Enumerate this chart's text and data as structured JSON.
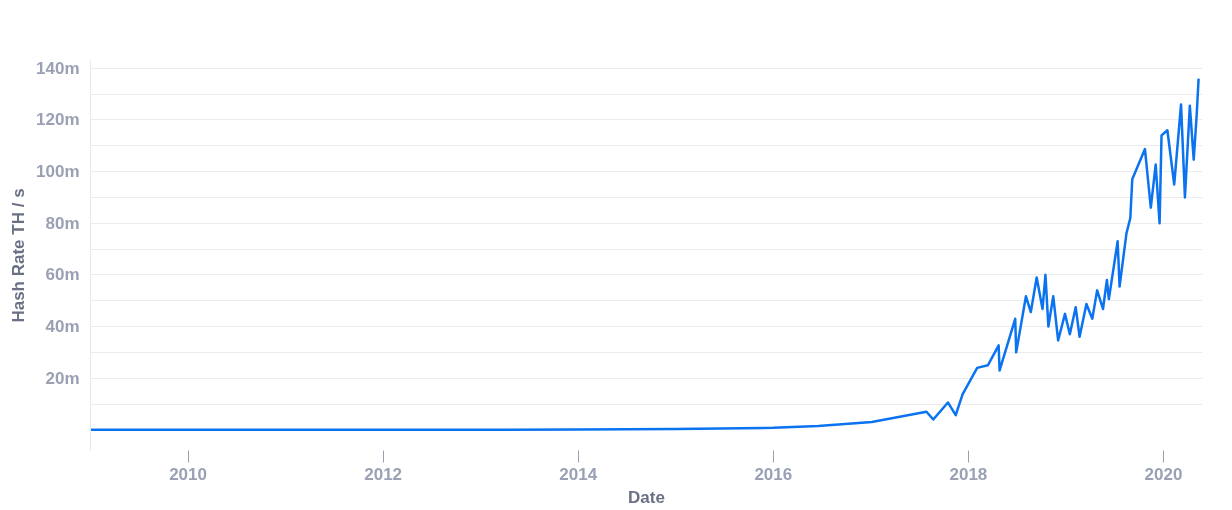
{
  "chart_data": {
    "type": "line",
    "xlabel": "Date",
    "ylabel": "Hash Rate TH / s",
    "xlim": [
      2009,
      2020.4
    ],
    "xticks": [
      2010,
      2012,
      2014,
      2016,
      2018,
      2020
    ],
    "ylim": [
      -8,
      143
    ],
    "yticks": [
      {
        "value": 10,
        "label": null
      },
      {
        "value": 20,
        "label": "20m"
      },
      {
        "value": 30,
        "label": null
      },
      {
        "value": 40,
        "label": "40m"
      },
      {
        "value": 50,
        "label": null
      },
      {
        "value": 60,
        "label": "60m"
      },
      {
        "value": 70,
        "label": null
      },
      {
        "value": 80,
        "label": "80m"
      },
      {
        "value": 90,
        "label": null
      },
      {
        "value": 100,
        "label": "100m"
      },
      {
        "value": 110,
        "label": null
      },
      {
        "value": 120,
        "label": "120m"
      },
      {
        "value": 130,
        "label": null
      },
      {
        "value": 140,
        "label": "140m"
      }
    ],
    "grid": "y",
    "marker": "none",
    "line_style": "solid",
    "series": [
      {
        "color": "#0b72f0",
        "x": [
          2009.0,
          2011.0,
          2013.0,
          2014.0,
          2015.0,
          2016.0,
          2016.46,
          2017.01,
          2017.57,
          2017.64,
          2017.79,
          2017.87,
          2017.94,
          2018.09,
          2018.2,
          2018.31,
          2018.32,
          2018.48,
          2018.49,
          2018.59,
          2018.64,
          2018.7,
          2018.76,
          2018.79,
          2018.82,
          2018.87,
          2018.92,
          2018.99,
          2019.04,
          2019.1,
          2019.14,
          2019.21,
          2019.27,
          2019.32,
          2019.38,
          2019.42,
          2019.44,
          2019.53,
          2019.55,
          2019.62,
          2019.66,
          2019.68,
          2019.81,
          2019.87,
          2019.92,
          2019.96,
          2019.98,
          2020.04,
          2020.11,
          2020.18,
          2020.22,
          2020.27,
          2020.31,
          2020.34,
          2020.36
        ],
        "values": [
          0,
          0,
          0,
          0.1,
          0.3,
          0.8,
          1.5,
          3,
          7,
          4,
          10.6,
          5.7,
          13.7,
          24,
          25,
          32.7,
          23,
          43,
          30,
          51.7,
          45.6,
          59,
          46.8,
          60,
          40,
          51.7,
          34.6,
          44.9,
          37,
          47.5,
          36,
          48.7,
          43,
          54,
          46.8,
          58,
          50.6,
          73,
          55.5,
          76,
          82,
          97,
          108.7,
          86,
          102.7,
          80,
          114,
          116,
          95,
          126,
          90,
          125.5,
          104.6,
          121.7,
          136
        ]
      }
    ]
  }
}
